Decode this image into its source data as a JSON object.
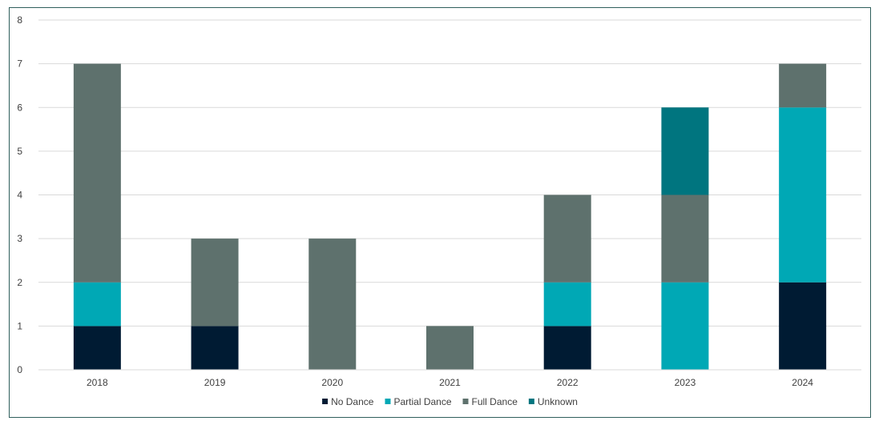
{
  "chart_data": {
    "type": "bar",
    "stacked": true,
    "categories": [
      "2018",
      "2019",
      "2020",
      "2021",
      "2022",
      "2023",
      "2024"
    ],
    "series": [
      {
        "name": "No Dance",
        "values": [
          1,
          1,
          0,
          0,
          1,
          0,
          2
        ],
        "color": "#001b33"
      },
      {
        "name": "Partial Dance",
        "values": [
          1,
          0,
          0,
          0,
          1,
          2,
          4
        ],
        "color": "#00a8b5"
      },
      {
        "name": "Full Dance",
        "values": [
          5,
          2,
          3,
          1,
          2,
          2,
          1
        ],
        "color": "#5e716d"
      },
      {
        "name": "Unknown",
        "values": [
          0,
          0,
          0,
          0,
          0,
          2,
          0
        ],
        "color": "#00757f"
      }
    ],
    "y_ticks": [
      "0",
      "1",
      "2",
      "3",
      "4",
      "5",
      "6",
      "7",
      "8"
    ],
    "ylim": [
      0,
      8
    ],
    "grid": true,
    "legend_position": "bottom",
    "title": "",
    "xlabel": "",
    "ylabel": ""
  }
}
